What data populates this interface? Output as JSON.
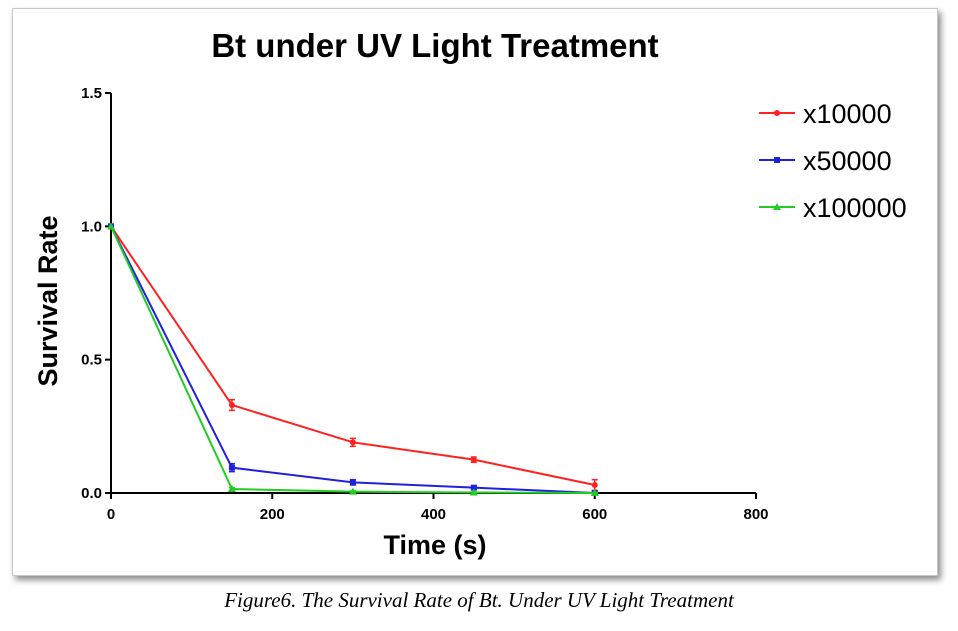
{
  "chart_data": {
    "type": "line",
    "title": "Bt under UV Light Treatment",
    "xlabel": "Time (s)",
    "ylabel": "Survival Rate",
    "xlim": [
      0,
      800
    ],
    "ylim": [
      0,
      1.5
    ],
    "xticks": [
      0,
      200,
      400,
      600,
      800
    ],
    "yticks": [
      0.0,
      0.5,
      1.0,
      1.5
    ],
    "xtick_labels": [
      "0",
      "200",
      "400",
      "600",
      "800"
    ],
    "ytick_labels": [
      "0.0",
      "0.5",
      "1.0",
      "1.5"
    ],
    "grid": false,
    "legend_position": "top-right",
    "series": [
      {
        "name": "x10000",
        "color": "#ff2020",
        "marker": "circle",
        "x": [
          0,
          150,
          300,
          450,
          600
        ],
        "y": [
          1.0,
          0.33,
          0.19,
          0.125,
          0.03
        ],
        "error": [
          0.0,
          0.02,
          0.015,
          0.01,
          0.02
        ]
      },
      {
        "name": "x50000",
        "color": "#2020e0",
        "marker": "square",
        "x": [
          0,
          150,
          300,
          450,
          600
        ],
        "y": [
          1.0,
          0.095,
          0.04,
          0.02,
          0.0
        ],
        "error": [
          0.0,
          0.015,
          0.01,
          0.005,
          0.005
        ]
      },
      {
        "name": "x100000",
        "color": "#22cc22",
        "marker": "triangle",
        "x": [
          0,
          150,
          300,
          450,
          600
        ],
        "y": [
          1.0,
          0.015,
          0.005,
          0.002,
          0.0
        ],
        "error": [
          0.0,
          0.005,
          0.003,
          0.002,
          0.002
        ]
      }
    ]
  },
  "caption": "Figure6. The Survival Rate of Bt. Under UV Light Treatment"
}
